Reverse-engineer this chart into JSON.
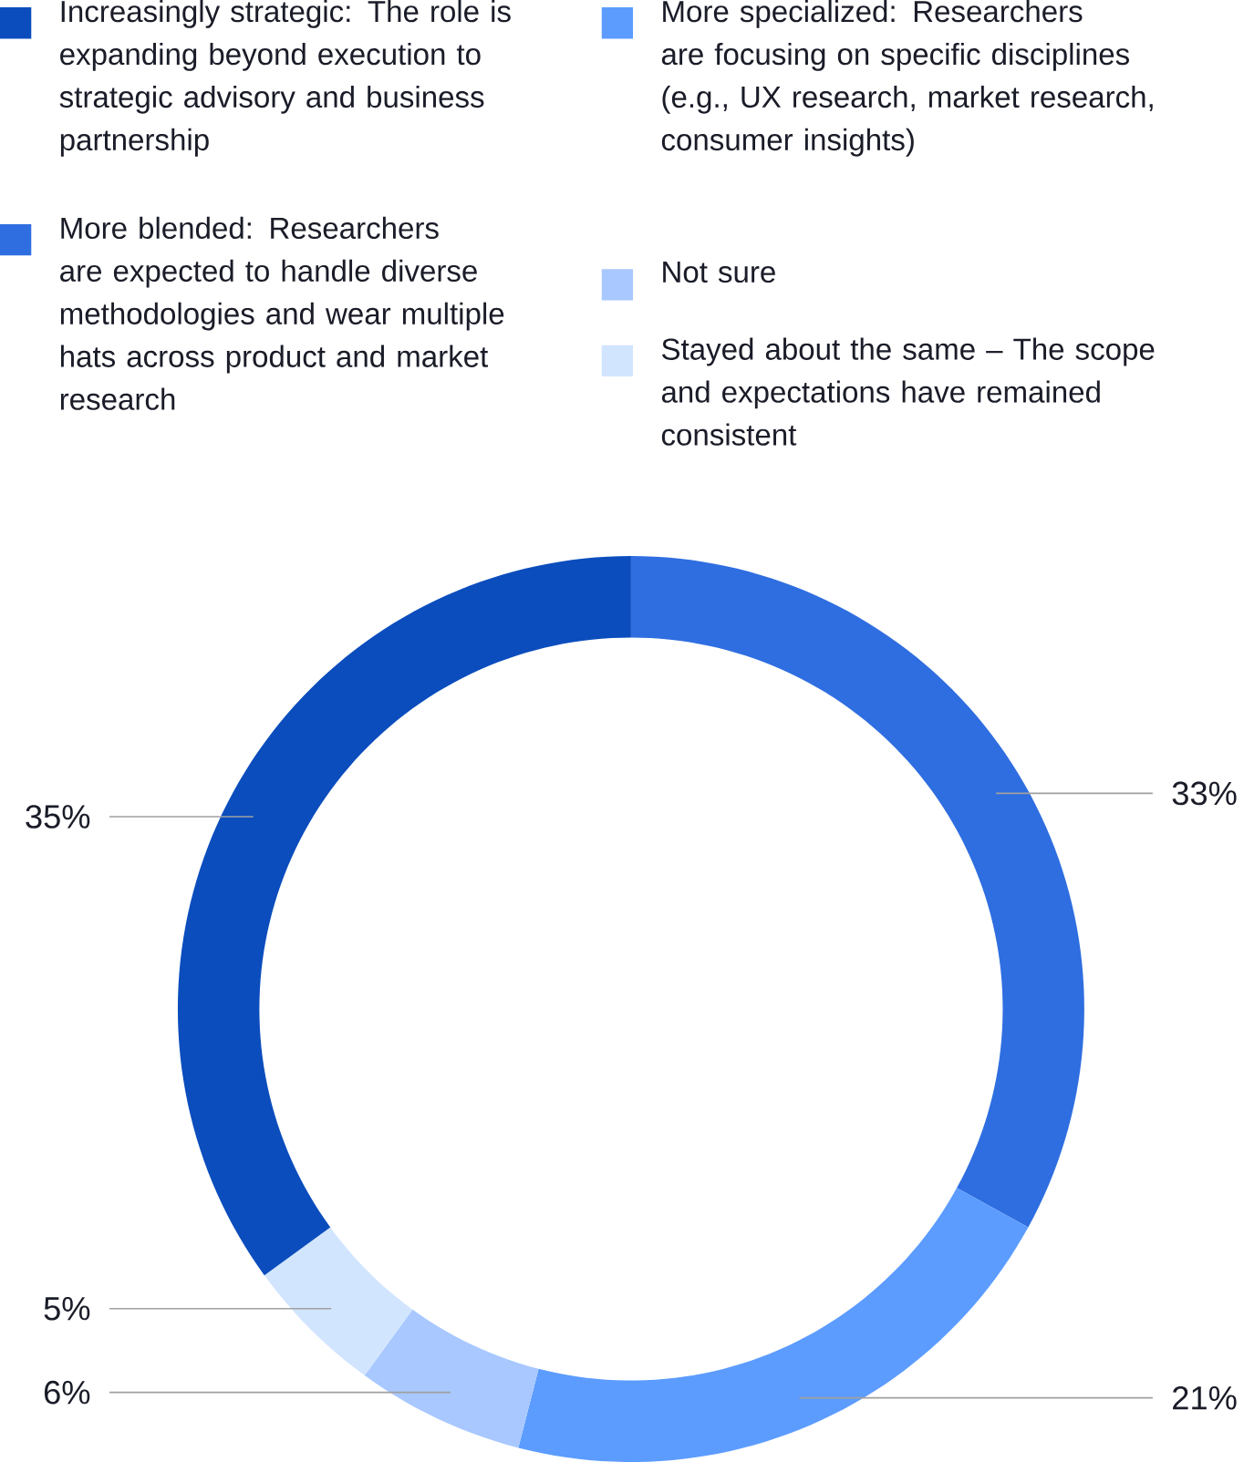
{
  "chart_data": {
    "type": "donut",
    "categories": [
      "Increasingly strategic: The role is expanding beyond execution to strategic advisory and business partnership",
      "More blended: Researchers are expected to handle diverse methodologies and wear multiple hats across product and market research",
      "More specialized: Researchers are focusing on specific disciplines (e.g., UX research, market research, consumer insights)",
      "Not sure",
      "Stayed about the same – The scope and expectations have remained consistent"
    ],
    "values": [
      35,
      33,
      21,
      6,
      5
    ],
    "colors": [
      "#0b4dbd",
      "#2f6ee0",
      "#5c9cff",
      "#a8c8ff",
      "#d2e5ff"
    ],
    "value_labels": [
      "35%",
      "33%",
      "21%",
      "6%",
      "5%"
    ],
    "legend": "top"
  }
}
